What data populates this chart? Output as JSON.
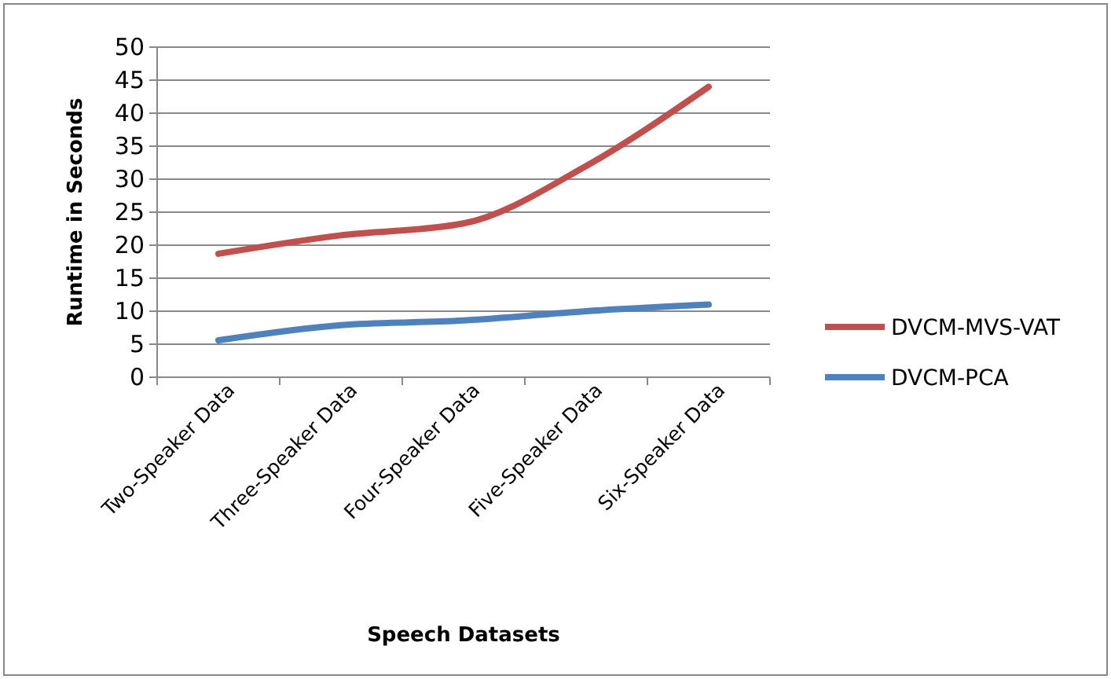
{
  "chart_data": {
    "type": "line",
    "xlabel": "Speech Datasets",
    "ylabel": "Runtime in Seconds",
    "categories": [
      "Two-Speaker Data",
      "Three-Speaker Data",
      "Four-Speaker Data",
      "Five-Speaker Data",
      "Six-Speaker Data"
    ],
    "series": [
      {
        "name": "DVCM-MVS-VAT",
        "color": "#c0504d",
        "values": [
          18.7,
          21.5,
          23.3,
          32,
          44
        ]
      },
      {
        "name": "DVCM-PCA",
        "color": "#4f81bd",
        "values": [
          5.6,
          7.9,
          8.6,
          10,
          11
        ]
      }
    ],
    "ylim": [
      0,
      50
    ],
    "yticks": [
      0,
      5,
      10,
      15,
      20,
      25,
      30,
      35,
      40,
      45,
      50
    ],
    "grid": "y",
    "legend": "right",
    "marker": "none",
    "line_style": "solid"
  }
}
